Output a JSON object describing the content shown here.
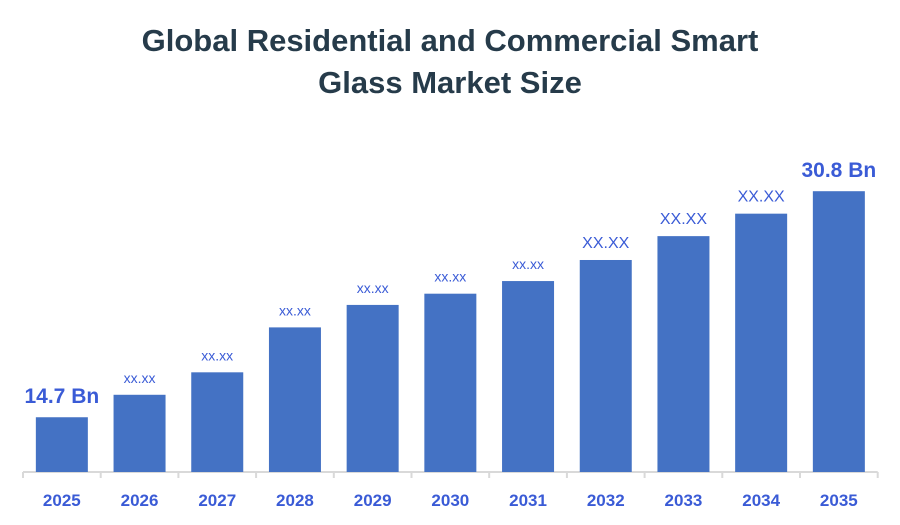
{
  "chart_data": {
    "type": "bar",
    "title_lines": [
      "Global Residential and Commercial Smart",
      "Glass Market Size"
    ],
    "xlabel": "",
    "ylabel": "",
    "categories": [
      "2025",
      "2026",
      "2027",
      "2028",
      "2029",
      "2030",
      "2031",
      "2032",
      "2033",
      "2034",
      "2035"
    ],
    "values": [
      14.7,
      16.3,
      17.9,
      21.1,
      22.7,
      23.5,
      24.4,
      25.9,
      27.6,
      29.2,
      30.8
    ],
    "data_labels": [
      "14.7 Bn",
      "xx.xx",
      "xx.xx",
      "xx.xx",
      "xx.xx",
      "xx.xx",
      "xx.xx",
      "XX.XX",
      "XX.XX",
      "XX.XX",
      "30.8 Bn"
    ],
    "ylim": [
      10.8,
      33
    ],
    "grid": false,
    "legend": "none",
    "colors": {
      "bar": "#4472c4",
      "label": "#3a5bd6",
      "title": "#263b4a",
      "axis": "#d9d9d9"
    }
  }
}
